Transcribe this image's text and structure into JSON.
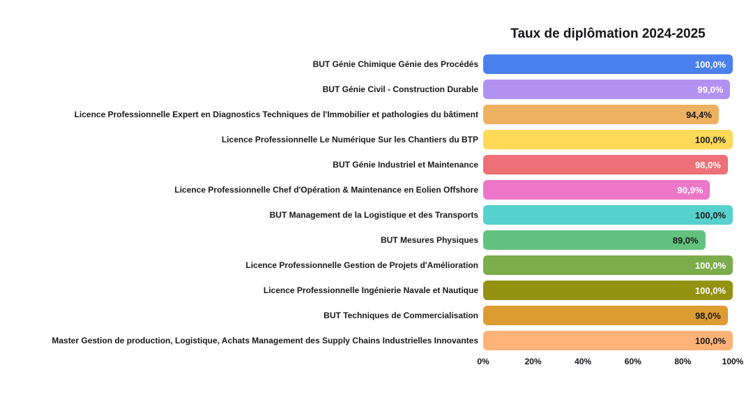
{
  "page": {
    "background_color": "#ffffff"
  },
  "chart_data": {
    "type": "bar",
    "orientation": "horizontal",
    "title": "Taux de diplômation 2024-2025",
    "xlabel": "",
    "ylabel": "",
    "xlim": [
      0,
      100
    ],
    "grid": false,
    "legend": "none",
    "value_format": "percent with comma decimal",
    "x_ticks": [
      {
        "label": "0%",
        "position": 0
      },
      {
        "label": "20%",
        "position": 20
      },
      {
        "label": "40%",
        "position": 40
      },
      {
        "label": "60%",
        "position": 60
      },
      {
        "label": "80%",
        "position": 80
      },
      {
        "label": "100%",
        "position": 100
      }
    ],
    "bars": [
      {
        "category": "BUT Génie Chimique Génie des Procédés",
        "value": 100.0,
        "value_label": "100,0%",
        "color": "#4a80ee",
        "value_label_color": "#ffffff"
      },
      {
        "category": "BUT Génie Civil - Construction Durable",
        "value": 99.0,
        "value_label": "99,0%",
        "color": "#b292f1",
        "value_label_color": "#ffffff"
      },
      {
        "category": "Licence Professionnelle Expert en Diagnostics Techniques de l'Immobilier et pathologies du bâtiment",
        "value": 94.4,
        "value_label": "94,4%",
        "color": "#eeb162",
        "value_label_color": "#1a1a1a"
      },
      {
        "category": "Licence Professionnelle Le Numérique Sur les Chantiers du BTP",
        "value": 100.0,
        "value_label": "100,0%",
        "color": "#fdd957",
        "value_label_color": "#1a1a1a"
      },
      {
        "category": "BUT Génie Industriel et Maintenance",
        "value": 98.0,
        "value_label": "98,0%",
        "color": "#ee6f76",
        "value_label_color": "#ffffff"
      },
      {
        "category": "Licence Professionnelle Chef d'Opération & Maintenance en Eolien Offshore",
        "value": 90.9,
        "value_label": "90,9%",
        "color": "#ec77c8",
        "value_label_color": "#ffffff"
      },
      {
        "category": "BUT Management de la Logistique et des Transports",
        "value": 100.0,
        "value_label": "100,0%",
        "color": "#57d1cd",
        "value_label_color": "#1a1a1a"
      },
      {
        "category": "BUT Mesures Physiques",
        "value": 89.0,
        "value_label": "89,0%",
        "color": "#63c37e",
        "value_label_color": "#1a1a1a"
      },
      {
        "category": "Licence Professionnelle Gestion de Projets d'Amélioration",
        "value": 100.0,
        "value_label": "100,0%",
        "color": "#7cad4c",
        "value_label_color": "#ffffff"
      },
      {
        "category": "Licence Professionnelle Ingénierie Navale et Nautique",
        "value": 100.0,
        "value_label": "100,0%",
        "color": "#939110",
        "value_label_color": "#ffffff"
      },
      {
        "category": "BUT Techniques de Commercialisation",
        "value": 98.0,
        "value_label": "98,0%",
        "color": "#dd9c31",
        "value_label_color": "#1a1a1a"
      },
      {
        "category": "Master Gestion de production, Logistique, Achats Management des Supply Chains Industrielles Innovantes",
        "value": 100.0,
        "value_label": "100,0%",
        "color": "#fdb377",
        "value_label_color": "#1a1a1a"
      }
    ]
  }
}
